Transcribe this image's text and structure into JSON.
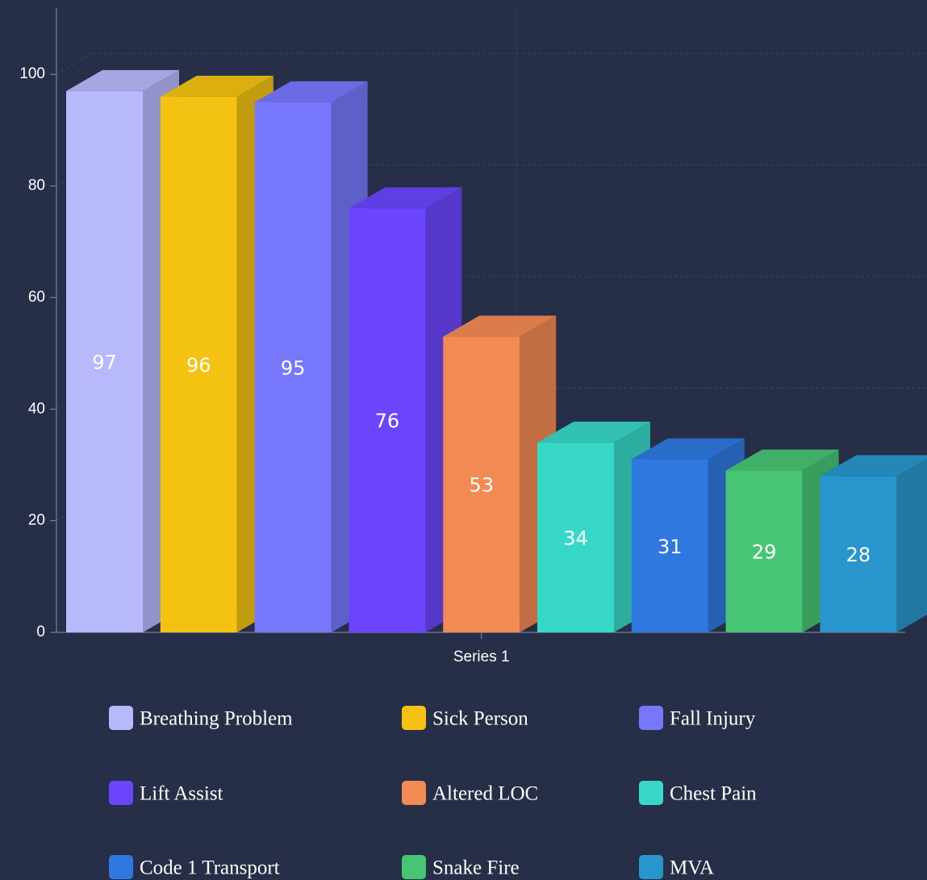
{
  "chart_data": {
    "type": "bar3d",
    "categories": [
      "Series 1"
    ],
    "series": [
      {
        "name": "Breathing Problem",
        "color": "#b8b8fc",
        "values": [
          97
        ]
      },
      {
        "name": "Sick Person",
        "color": "#f4c212",
        "values": [
          96
        ]
      },
      {
        "name": "Fall Injury",
        "color": "#7777fc",
        "values": [
          95
        ]
      },
      {
        "name": "Lift Assist",
        "color": "#6a45fc",
        "values": [
          76
        ]
      },
      {
        "name": "Altered LOC",
        "color": "#f28a53",
        "values": [
          53
        ]
      },
      {
        "name": "Chest Pain",
        "color": "#38d8c8",
        "values": [
          34
        ]
      },
      {
        "name": "Code 1 Transport",
        "color": "#2f78e0",
        "values": [
          31
        ]
      },
      {
        "name": "Snake Fire",
        "color": "#47c474",
        "values": [
          29
        ]
      },
      {
        "name": "MVA",
        "color": "#2896cc",
        "values": [
          28
        ]
      }
    ],
    "ylim": [
      0,
      110
    ],
    "yticks": [
      0,
      20,
      40,
      60,
      80,
      100
    ],
    "grid": true,
    "legend": "bottom"
  }
}
